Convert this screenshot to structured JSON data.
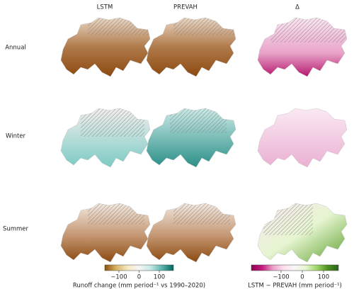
{
  "columns": [
    "LSTM",
    "PREVAH",
    "Δ"
  ],
  "rows": [
    "Annual",
    "Winter",
    "Summer"
  ],
  "colorbars": [
    {
      "label": "Runoff change (mm period⁻¹ vs 1990–2020)",
      "lim": [
        -170,
        170
      ],
      "ticks": [
        {
          "value": -100,
          "label": "−100"
        },
        0,
        100
      ],
      "colors": [
        "#8c510a",
        "#d8b365",
        "#f6e8c3",
        "#f5f5f5",
        "#c7eae5",
        "#5ab4ac",
        "#01665e"
      ]
    },
    {
      "label": "LSTM − PREVAH (mm period⁻¹)",
      "lim": [
        -240,
        170
      ],
      "ticks": [
        {
          "value": -100,
          "label": "−100"
        },
        0,
        100
      ],
      "colors": [
        "#8e0152",
        "#c51b7d",
        "#e9a3c9",
        "#fde0ef",
        "#f7f7f7",
        "#e6f5d0",
        "#a1d76a",
        "#4d9221",
        "#276419"
      ]
    }
  ]
}
